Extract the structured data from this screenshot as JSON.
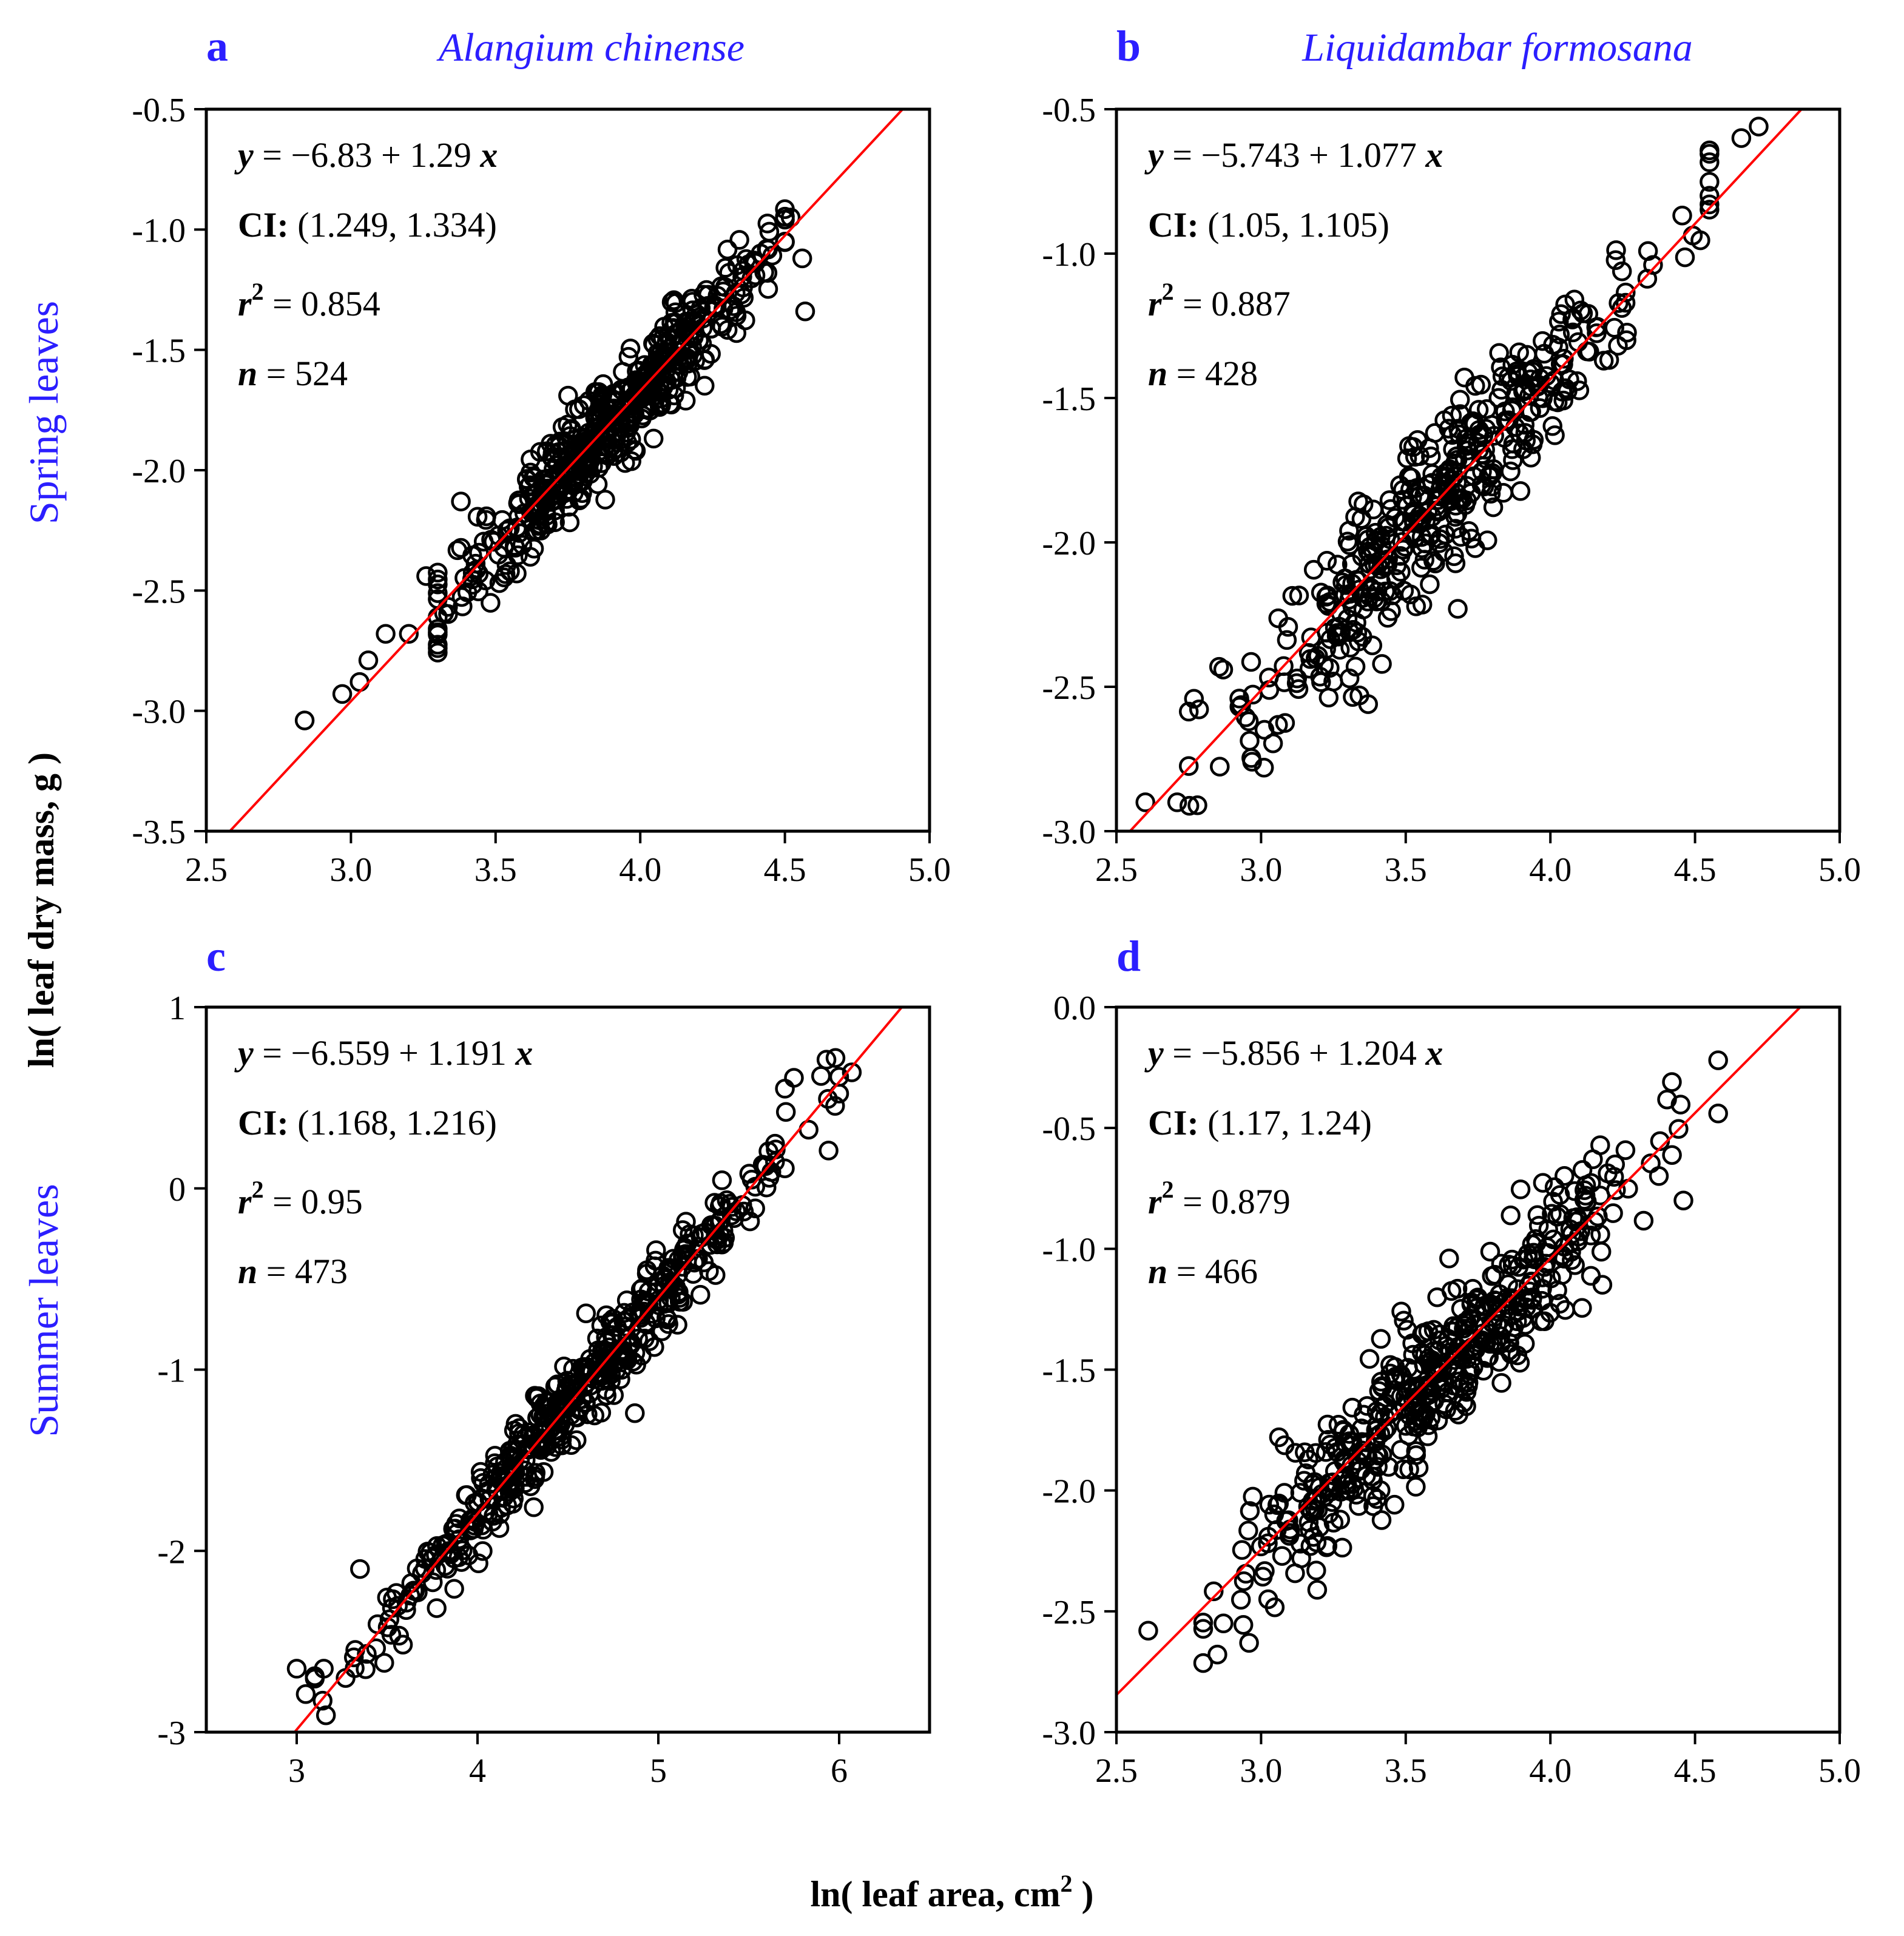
{
  "figure": {
    "xlabel_main": "ln( leaf area,  cm",
    "xlabel_sup": "2",
    "xlabel_end": " )",
    "ylabel": "ln( leaf dry mass,  g )",
    "row_labels": [
      "Spring leaves",
      "Summer leaves"
    ],
    "label_color": "#2b1eff",
    "fit_color": "#ff0000"
  },
  "chart_data": [
    {
      "type": "scatter",
      "panel": "a",
      "species": "Alangium chinense",
      "row": "Spring leaves",
      "xlim": [
        2.5,
        5.0
      ],
      "ylim": [
        -3.5,
        -0.5
      ],
      "xticks": [
        "2.5",
        "3.0",
        "3.5",
        "4.0",
        "4.5",
        "5.0"
      ],
      "yticks": [
        "-0.5",
        "-1.0",
        "-1.5",
        "-2.0",
        "-2.5",
        "-3.0",
        "-3.5"
      ],
      "fit": {
        "intercept": -6.83,
        "slope": 1.29
      },
      "annotations": {
        "eq_const": "−6.83 + 1.29",
        "ci": "(1.249, 1.334)",
        "r2": "0.854",
        "n": "524"
      },
      "n_points": 524,
      "spread": 0.1,
      "x_range": [
        3.3,
        4.5
      ],
      "x_sd": 0.27,
      "extra_points": [
        [
          2.84,
          -3.04
        ],
        [
          2.97,
          -2.93
        ],
        [
          3.03,
          -2.88
        ],
        [
          3.06,
          -2.79
        ],
        [
          3.12,
          -2.68
        ],
        [
          3.2,
          -2.68
        ],
        [
          3.26,
          -2.44
        ],
        [
          3.38,
          -2.13
        ],
        [
          4.57,
          -1.34
        ],
        [
          4.56,
          -1.12
        ],
        [
          4.52,
          -0.95
        ]
      ]
    },
    {
      "type": "scatter",
      "panel": "b",
      "species": "Liquidambar formosana",
      "row": "Spring leaves",
      "xlim": [
        2.5,
        5.0
      ],
      "ylim": [
        -3.0,
        -0.5
      ],
      "xticks": [
        "2.5",
        "3.0",
        "3.5",
        "4.0",
        "4.5",
        "5.0"
      ],
      "yticks": [
        "-0.5",
        "-1.0",
        "-1.5",
        "-2.0",
        "-2.5",
        "-3.0"
      ],
      "fit": {
        "intercept": -5.743,
        "slope": 1.077
      },
      "annotations": {
        "eq_const": "−5.743 + 1.077",
        "ci": "(1.05, 1.105)",
        "r2": "0.887",
        "n": "428"
      },
      "n_points": 428,
      "spread": 0.14,
      "x_range": [
        2.75,
        4.55
      ],
      "x_sd": 0.38,
      "extra_points": [
        [
          2.6,
          -2.9
        ],
        [
          2.71,
          -2.9
        ],
        [
          2.78,
          -2.91
        ],
        [
          4.72,
          -0.56
        ],
        [
          4.66,
          -0.6
        ],
        [
          3.68,
          -2.23
        ],
        [
          3.34,
          -2.53
        ],
        [
          3.37,
          -2.56
        ],
        [
          3.01,
          -2.78
        ]
      ]
    },
    {
      "type": "scatter",
      "panel": "c",
      "species": "",
      "row": "Summer leaves",
      "xlim": [
        2.5,
        6.5
      ],
      "ylim": [
        -3,
        1
      ],
      "xticks": [
        "3",
        "4",
        "5",
        "6"
      ],
      "yticks": [
        "1",
        "0",
        "-1",
        "-2",
        "-3"
      ],
      "fit": {
        "intercept": -6.559,
        "slope": 1.191
      },
      "annotations": {
        "eq_const": "−6.559 + 1.191",
        "ci": "(1.168, 1.216)",
        "r2": "0.95",
        "n": "473"
      },
      "n_points": 473,
      "spread": 0.12,
      "x_range": [
        3.1,
        6.0
      ],
      "x_sd": 0.55,
      "extra_points": [
        [
          3.0,
          -2.65
        ],
        [
          3.05,
          -2.79
        ],
        [
          3.15,
          -2.65
        ],
        [
          3.35,
          -2.1
        ],
        [
          6.07,
          0.64
        ],
        [
          5.98,
          0.72
        ],
        [
          5.93,
          0.71
        ],
        [
          5.9,
          0.62
        ],
        [
          5.75,
          0.61
        ],
        [
          5.7,
          0.55
        ],
        [
          4.87,
          -1.24
        ]
      ]
    },
    {
      "type": "scatter",
      "panel": "d",
      "species": "",
      "row": "Summer leaves",
      "xlim": [
        2.5,
        5.0
      ],
      "ylim": [
        -3.0,
        0.0
      ],
      "xticks": [
        "2.5",
        "3.0",
        "3.5",
        "4.0",
        "4.5",
        "5.0"
      ],
      "yticks": [
        "0.0",
        "-0.5",
        "-1.0",
        "-1.5",
        "-2.0",
        "-2.5",
        "-3.0"
      ],
      "fit": {
        "intercept": -5.856,
        "slope": 1.204
      },
      "annotations": {
        "eq_const": "−5.856 + 1.204",
        "ci": "(1.17, 1.24)",
        "r2": "0.879",
        "n": "466"
      },
      "n_points": 466,
      "spread": 0.15,
      "x_range": [
        2.8,
        4.45
      ],
      "x_sd": 0.33,
      "extra_points": [
        [
          2.61,
          -2.58
        ],
        [
          2.87,
          -2.55
        ],
        [
          4.58,
          -0.22
        ],
        [
          4.42,
          -0.31
        ],
        [
          4.58,
          -0.44
        ],
        [
          4.46,
          -0.8
        ],
        [
          3.65,
          -1.04
        ]
      ]
    }
  ]
}
